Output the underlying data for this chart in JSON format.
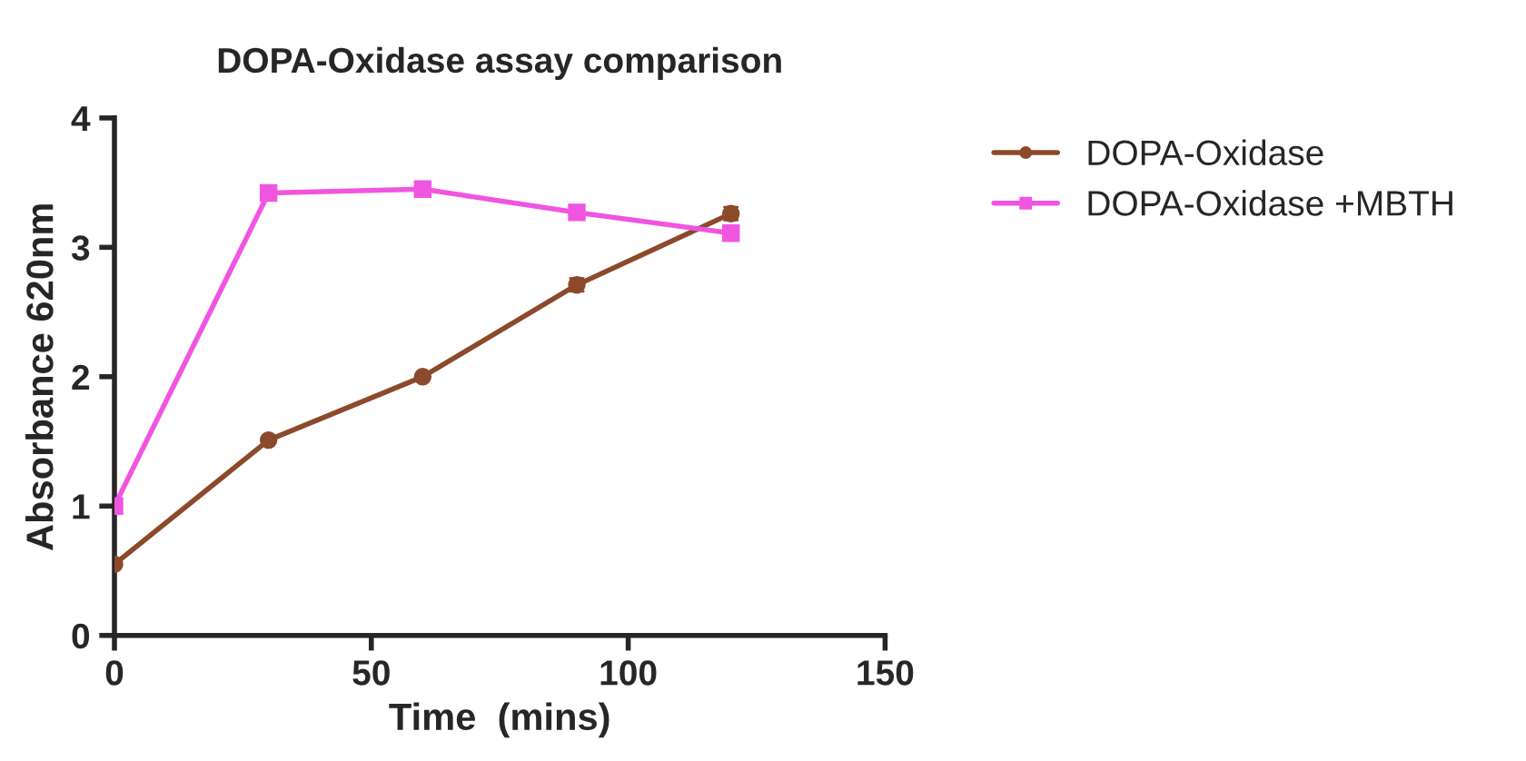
{
  "chart_data": {
    "type": "line",
    "title": "DOPA-Oxidase assay comparison",
    "xlabel": "Time  (mins)",
    "ylabel": "Absorbance 620nm",
    "x": [
      0,
      30,
      60,
      90,
      120
    ],
    "series": [
      {
        "name": "DOPA-Oxidase",
        "color": "#8b4a2b",
        "marker": "circle",
        "values": [
          0.55,
          1.51,
          2.0,
          2.71,
          3.26
        ],
        "errors": [
          null,
          null,
          null,
          0.05,
          0.05
        ]
      },
      {
        "name": "DOPA-Oxidase +MBTH",
        "color": "#f055e0",
        "marker": "square",
        "values": [
          1.0,
          3.42,
          3.45,
          3.27,
          3.11
        ],
        "errors": [
          null,
          0.05,
          null,
          0.03,
          null
        ]
      }
    ],
    "xlim": [
      0,
      150
    ],
    "xticks": [
      0,
      50,
      100,
      150
    ],
    "ylim": [
      0,
      4
    ],
    "yticks": [
      0,
      1,
      2,
      3,
      4
    ],
    "grid": false,
    "legend": "right",
    "line_style": "solid"
  }
}
